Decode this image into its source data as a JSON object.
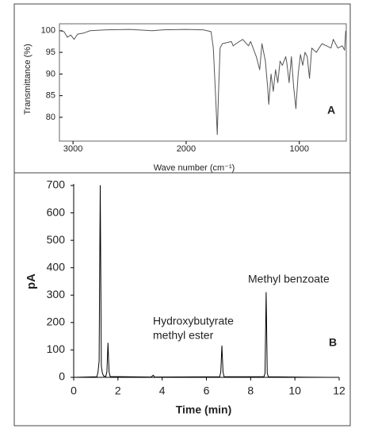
{
  "chart_data": [
    {
      "type": "line",
      "panel": "A",
      "x_label": "Wave number (cm⁻¹)",
      "y_label": "Transmittance (%)",
      "annotations": [
        "A"
      ],
      "x": [
        3120,
        3080,
        3050,
        3020,
        2990,
        2960,
        2900,
        2850,
        2700,
        2500,
        2300,
        2200,
        2000,
        1850,
        1780,
        1760,
        1740,
        1725,
        1715,
        1700,
        1680,
        1600,
        1585,
        1560,
        1500,
        1450,
        1430,
        1380,
        1350,
        1330,
        1300,
        1280,
        1270,
        1250,
        1230,
        1210,
        1190,
        1170,
        1150,
        1120,
        1110,
        1090,
        1070,
        1050,
        1030,
        1010,
        990,
        970,
        950,
        930,
        910,
        890,
        850,
        800,
        760,
        720,
        700,
        660,
        620,
        600,
        590
      ],
      "values": [
        100,
        99.8,
        98.5,
        99,
        98,
        99.2,
        99.5,
        100,
        100.2,
        100.3,
        100,
        100.2,
        100.3,
        100.2,
        99.8,
        96,
        85,
        76,
        85,
        96,
        97,
        97.5,
        96.5,
        97,
        98,
        96.5,
        97.5,
        94,
        91,
        97,
        93,
        87,
        83,
        90,
        86,
        91,
        88,
        93,
        92,
        94,
        92.5,
        88,
        94,
        87,
        82,
        90,
        94.5,
        92,
        95,
        94,
        89,
        96,
        95,
        97,
        96.5,
        96,
        98,
        96,
        96.5,
        95.5,
        100
      ],
      "color": "#555555",
      "xlim": [
        3120,
        585
      ],
      "xticks": [
        3000,
        2000,
        1000
      ],
      "ylim": [
        74.5,
        101.6
      ],
      "yticks": [
        80,
        85,
        90,
        95,
        100
      ]
    },
    {
      "type": "line",
      "panel": "B",
      "x_label": "Time (min)",
      "y_label": "pA",
      "annotations": [
        "Hydroxybutyrate",
        "methyl ester",
        "Methyl benzoate",
        "B"
      ],
      "x": [
        0,
        1.05,
        1.1,
        1.15,
        1.2,
        1.25,
        1.3,
        1.35,
        1.45,
        1.5,
        1.55,
        1.6,
        1.65,
        3.5,
        3.6,
        3.65,
        6.6,
        6.65,
        6.7,
        6.75,
        6.8,
        8.6,
        8.65,
        8.7,
        8.75,
        8.8,
        11.5
      ],
      "values": [
        0,
        2,
        20,
        60,
        700,
        40,
        15,
        5,
        3,
        20,
        125,
        20,
        3,
        1,
        8,
        1,
        2,
        20,
        115,
        20,
        2,
        2,
        15,
        310,
        15,
        2,
        0
      ],
      "color": "#000000",
      "xlim": [
        0,
        12
      ],
      "xticks": [
        0,
        2,
        4,
        6,
        8,
        10,
        12
      ],
      "ylim": [
        0,
        700
      ],
      "yticks": [
        0,
        100,
        200,
        300,
        400,
        500,
        600,
        700
      ]
    }
  ]
}
